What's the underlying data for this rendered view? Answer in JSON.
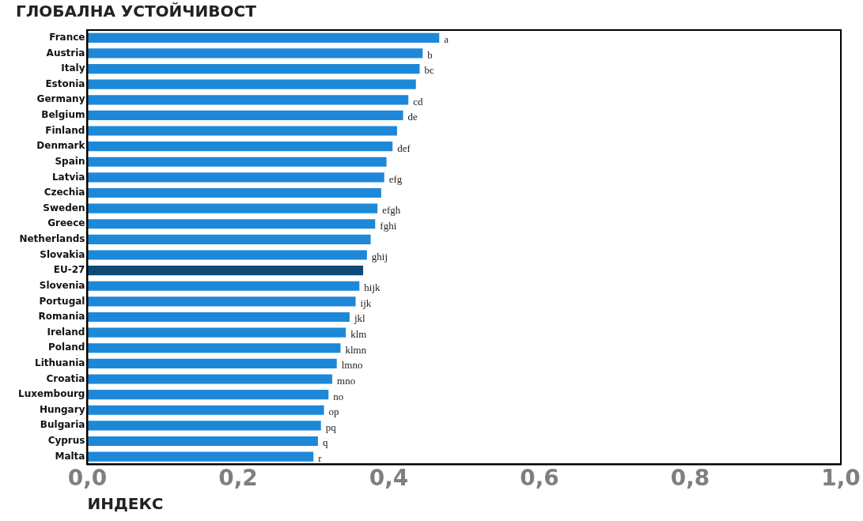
{
  "chart_data": {
    "type": "bar",
    "orientation": "horizontal",
    "title": "ГЛОБАЛНА УСТОЙЧИВОСТ",
    "xlabel": "ИНДЕКС",
    "categories": [
      "France",
      "Austria",
      "Italy",
      "Estonia",
      "Germany",
      "Belgium",
      "Finland",
      "Denmark",
      "Spain",
      "Latvia",
      "Czechia",
      "Sweden",
      "Greece",
      "Netherlands",
      "Slovakia",
      "EU-27",
      "Slovenia",
      "Portugal",
      "Romania",
      "Ireland",
      "Poland",
      "Lithuania",
      "Croatia",
      "Luxembourg",
      "Hungary",
      "Bulgaria",
      "Cyprus",
      "Malta"
    ],
    "values": [
      0.467,
      0.445,
      0.441,
      0.436,
      0.426,
      0.419,
      0.411,
      0.405,
      0.397,
      0.394,
      0.39,
      0.385,
      0.382,
      0.376,
      0.371,
      0.366,
      0.361,
      0.356,
      0.348,
      0.343,
      0.336,
      0.331,
      0.325,
      0.32,
      0.314,
      0.31,
      0.306,
      0.3
    ],
    "colors": [
      "#1e88d8",
      "#1e88d8",
      "#1e88d8",
      "#1e88d8",
      "#1e88d8",
      "#1e88d8",
      "#1e88d8",
      "#1e88d8",
      "#1e88d8",
      "#1e88d8",
      "#1e88d8",
      "#1e88d8",
      "#1e88d8",
      "#1e88d8",
      "#1e88d8",
      "#0e4a75",
      "#1e88d8",
      "#1e88d8",
      "#1e88d8",
      "#1e88d8",
      "#1e88d8",
      "#1e88d8",
      "#1e88d8",
      "#1e88d8",
      "#1e88d8",
      "#1e88d8",
      "#1e88d8",
      "#1e88d8"
    ],
    "value_labels": [
      "a",
      "b",
      "bc",
      null,
      "cd",
      "de",
      null,
      "def",
      null,
      "efg",
      null,
      "efgh",
      "fghi",
      null,
      "ghij",
      null,
      "hijk",
      "ijk",
      "jkl",
      "klm",
      "klmn",
      "lmno",
      "mno",
      "no",
      "op",
      "pq",
      "q",
      "r"
    ],
    "xlim": [
      0,
      1
    ],
    "xticks": [
      {
        "value": 0,
        "label": "0,0"
      },
      {
        "value": 0.2,
        "label": "0,2"
      },
      {
        "value": 0.4,
        "label": "0,4"
      },
      {
        "value": 0.6,
        "label": "0,6"
      },
      {
        "value": 0.8,
        "label": "0,8"
      },
      {
        "value": 1,
        "label": "1,0"
      }
    ],
    "grid": false,
    "legend": false
  }
}
